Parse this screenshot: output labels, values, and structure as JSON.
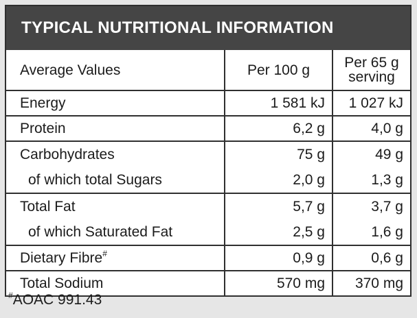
{
  "title": "TYPICAL NUTRITIONAL INFORMATION",
  "columns": {
    "label": "Average Values",
    "per100": "Per 100 g",
    "perServing_line1": "Per 65 g",
    "perServing_line2": "serving"
  },
  "rows": {
    "energy": {
      "label": "Energy",
      "per100": "1 581 kJ",
      "perServing": "1 027 kJ"
    },
    "protein": {
      "label": "Protein",
      "per100": "6,2 g",
      "perServing": "4,0 g"
    },
    "carbohydrates": {
      "label": "Carbohydrates",
      "per100": "75 g",
      "perServing": "49 g"
    },
    "sugars": {
      "label": "of which total Sugars",
      "per100": "2,0 g",
      "perServing": "1,3 g"
    },
    "totalFat": {
      "label": "Total Fat",
      "per100": "5,7 g",
      "perServing": "3,7 g"
    },
    "saturatedFat": {
      "label": "of which Saturated Fat",
      "per100": "2,5 g",
      "perServing": "1,6 g"
    },
    "fibre": {
      "label": "Dietary Fibre",
      "marker": "#",
      "per100": "0,9 g",
      "perServing": "0,6 g"
    },
    "sodium": {
      "label": "Total Sodium",
      "per100": "570 mg",
      "perServing": "370 mg"
    }
  },
  "footnote": {
    "marker": "#",
    "text": "AOAC 991.43"
  },
  "colors": {
    "header_bg": "#454545",
    "border": "#2f2f2f"
  }
}
